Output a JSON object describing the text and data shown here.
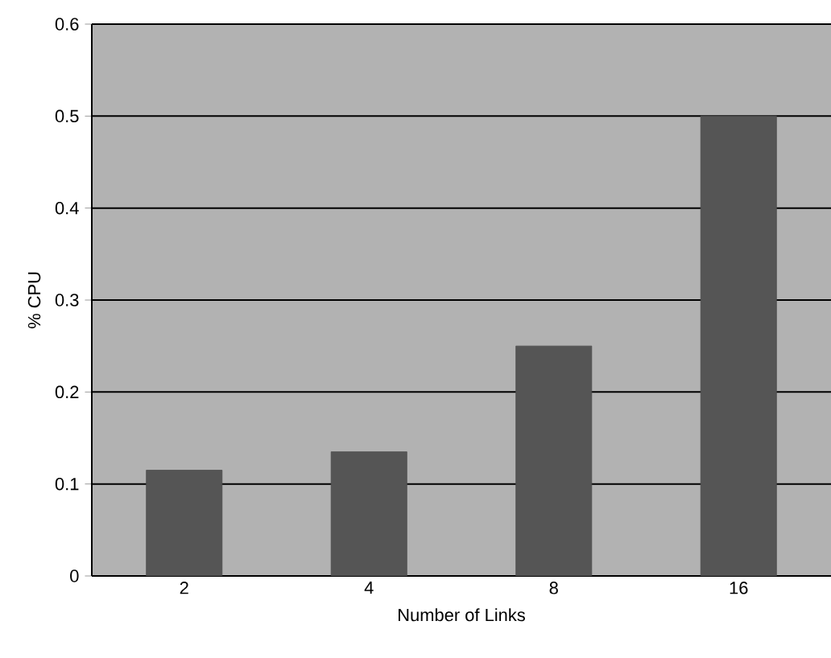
{
  "chart_data": {
    "type": "bar",
    "xlabel": "Number of Links",
    "ylabel": "% CPU",
    "categories": [
      "2",
      "4",
      "8",
      "16"
    ],
    "values": [
      0.115,
      0.135,
      0.25,
      0.5
    ],
    "color": "#555555",
    "ylim": [
      0,
      0.6
    ],
    "yticks": [
      0,
      0.1,
      0.2,
      0.3,
      0.4,
      0.5,
      0.6
    ],
    "grid": "y"
  }
}
